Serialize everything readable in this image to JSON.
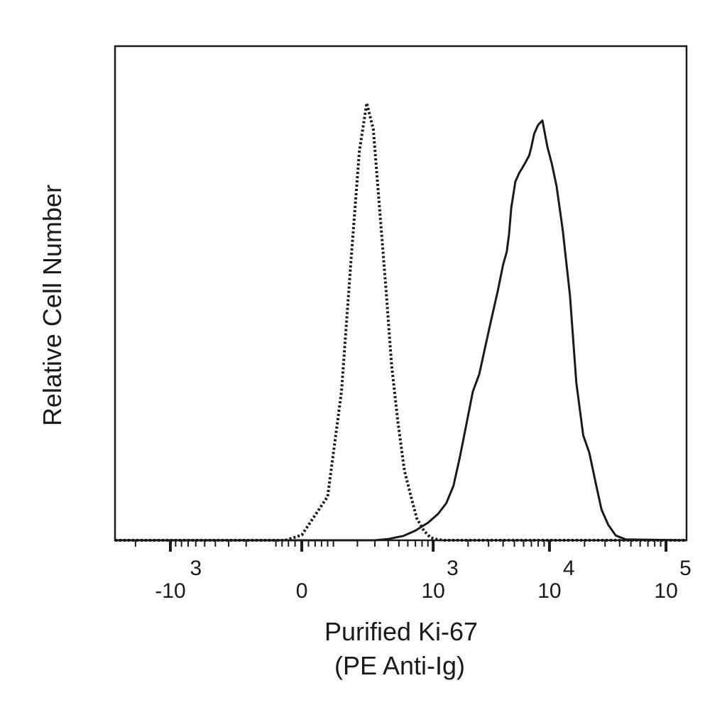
{
  "chart_data": {
    "type": "line",
    "title": "",
    "xlabel_lines": [
      "Purified Ki-67",
      "(PE Anti-Ig)"
    ],
    "ylabel": "Relative Cell Number",
    "x_scale": "biexponential",
    "xlim": [
      -3000,
      150000
    ],
    "ylim": [
      0,
      1.13
    ],
    "grid": false,
    "legend": "none",
    "x_ticks": [
      {
        "value": -1000,
        "base": "-10",
        "exp": "3"
      },
      {
        "value": 0,
        "base": "0",
        "exp": ""
      },
      {
        "value": 1000,
        "base": "10",
        "exp": "3"
      },
      {
        "value": 10000,
        "base": "10",
        "exp": "4"
      },
      {
        "value": 100000,
        "base": "10",
        "exp": "5"
      }
    ],
    "series": [
      {
        "style": "dotted",
        "color": "#1a1a1a",
        "x": [
          -3000,
          -50,
          0,
          80,
          130,
          170,
          210,
          250,
          290,
          330,
          380,
          430,
          490,
          560,
          640,
          720,
          830,
          950,
          1080,
          1250,
          150000
        ],
        "y": [
          0,
          0,
          0.012,
          0.1,
          0.34,
          0.64,
          0.89,
          1.0,
          0.94,
          0.77,
          0.58,
          0.4,
          0.27,
          0.16,
          0.1,
          0.05,
          0.022,
          0.006,
          0.002,
          0,
          0
        ]
      },
      {
        "style": "solid",
        "color": "#1a1a1a",
        "x": [
          -3000,
          300,
          400,
          550,
          700,
          900,
          1100,
          1300,
          1500,
          1700,
          1950,
          2200,
          2500,
          2850,
          3200,
          3600,
          4000,
          4300,
          4500,
          4700,
          5100,
          5500,
          5800,
          6100,
          6400,
          6700,
          7000,
          7400,
          8000,
          8700,
          9600,
          10500,
          11500,
          13000,
          15000,
          17000,
          19500,
          22000,
          25000,
          28000,
          32000,
          37000,
          45000,
          150000
        ],
        "y": [
          0,
          0,
          0.003,
          0.01,
          0.022,
          0.04,
          0.06,
          0.085,
          0.125,
          0.19,
          0.27,
          0.34,
          0.38,
          0.45,
          0.51,
          0.57,
          0.63,
          0.66,
          0.7,
          0.76,
          0.82,
          0.84,
          0.85,
          0.86,
          0.87,
          0.88,
          0.9,
          0.93,
          0.95,
          0.96,
          0.9,
          0.86,
          0.81,
          0.71,
          0.56,
          0.36,
          0.24,
          0.2,
          0.13,
          0.07,
          0.035,
          0.011,
          0.002,
          0
        ]
      }
    ]
  }
}
